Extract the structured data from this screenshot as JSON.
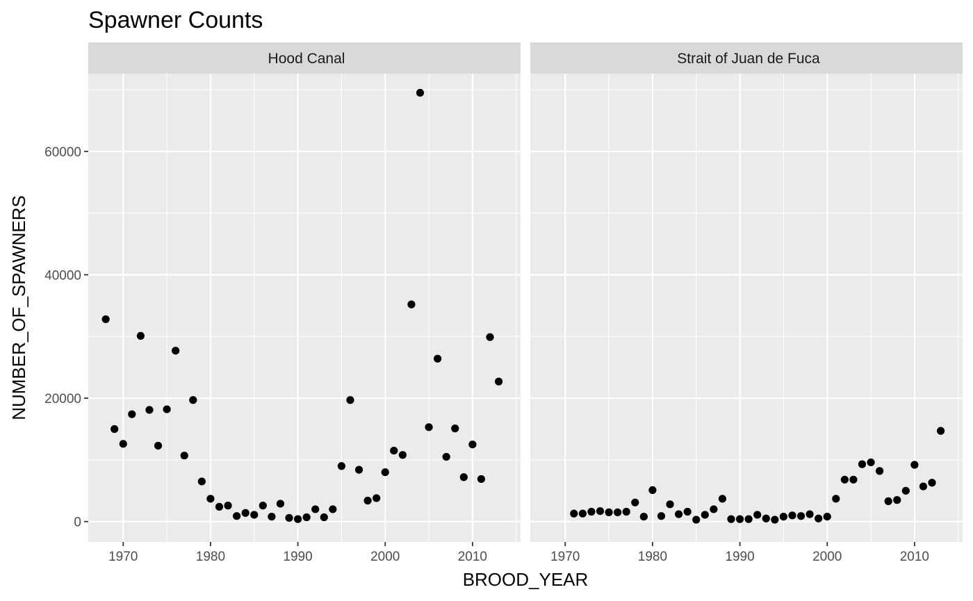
{
  "chart_data": {
    "type": "scatter",
    "title": "Spawner Counts",
    "xlabel": "BROOD_YEAR",
    "ylabel": "NUMBER_OF_SPAWNERS",
    "xlim": [
      1966,
      2015.5
    ],
    "ylim": [
      -3300,
      72600
    ],
    "x_ticks": [
      1970,
      1980,
      1990,
      2000,
      2010
    ],
    "x_tick_labels": [
      "1970",
      "1980",
      "1990",
      "2000",
      "2010"
    ],
    "y_ticks": [
      0,
      20000,
      40000,
      60000
    ],
    "y_tick_labels": [
      "0",
      "20000",
      "40000",
      "60000"
    ],
    "grid": true,
    "point_color": "#000000",
    "panel_background": "#ebebeb",
    "strip_background": "#d9d9d9",
    "facets": [
      {
        "name": "Hood Canal",
        "x": [
          1968,
          1969,
          1970,
          1971,
          1972,
          1973,
          1974,
          1975,
          1976,
          1977,
          1978,
          1979,
          1980,
          1981,
          1982,
          1983,
          1984,
          1985,
          1986,
          1987,
          1988,
          1989,
          1990,
          1991,
          1992,
          1993,
          1994,
          1995,
          1996,
          1997,
          1998,
          1999,
          2000,
          2001,
          2002,
          2003,
          2004,
          2005,
          2006,
          2007,
          2008,
          2009,
          2010,
          2011,
          2012,
          2013
        ],
        "y": [
          32800,
          15000,
          12600,
          17400,
          30100,
          18100,
          12300,
          18200,
          27700,
          10700,
          19700,
          6500,
          3700,
          2400,
          2600,
          900,
          1400,
          1100,
          2600,
          800,
          2900,
          600,
          400,
          700,
          2000,
          700,
          2000,
          9000,
          19700,
          8400,
          3400,
          3800,
          8000,
          11500,
          10800,
          35200,
          69500,
          15300,
          26400,
          10500,
          15100,
          7200,
          12500,
          6900,
          29900,
          22700
        ]
      },
      {
        "name": "Strait of Juan de Fuca",
        "x": [
          1971,
          1972,
          1973,
          1974,
          1975,
          1976,
          1977,
          1978,
          1979,
          1980,
          1981,
          1982,
          1983,
          1984,
          1985,
          1986,
          1987,
          1988,
          1989,
          1990,
          1991,
          1992,
          1993,
          1994,
          1995,
          1996,
          1997,
          1998,
          1999,
          2000,
          2001,
          2002,
          2003,
          2004,
          2005,
          2006,
          2007,
          2008,
          2009,
          2010,
          2011,
          2012,
          2013
        ],
        "y": [
          1300,
          1300,
          1600,
          1700,
          1500,
          1500,
          1600,
          3100,
          800,
          5100,
          900,
          2800,
          1200,
          1600,
          300,
          1100,
          2000,
          3700,
          400,
          400,
          400,
          1100,
          500,
          300,
          800,
          1000,
          900,
          1200,
          500,
          800,
          3700,
          6800,
          6800,
          9300,
          9600,
          8200,
          3300,
          3500,
          5000,
          9200,
          5700,
          6300,
          14700
        ]
      }
    ]
  }
}
